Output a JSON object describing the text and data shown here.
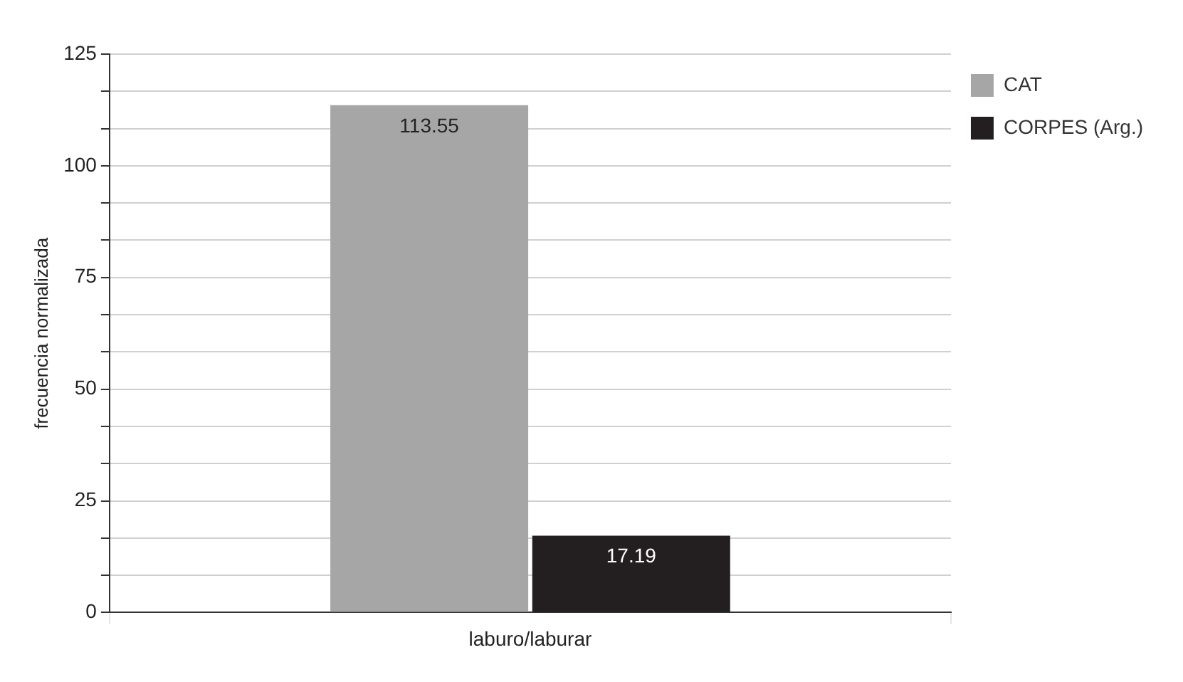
{
  "chart_data": {
    "type": "bar",
    "categories": [
      "laburo/laburar"
    ],
    "ylabel": "frecuencia normalizada",
    "series": [
      {
        "name": "CAT",
        "color": "#a6a6a6",
        "values": [
          113.55
        ]
      },
      {
        "name": "CORPES (Arg.)",
        "color": "#231f20",
        "values": [
          17.19
        ]
      }
    ],
    "ylim": [
      0,
      125
    ],
    "yticks": [
      0,
      {
        "value": 8.333,
        "label": null
      },
      {
        "value": 16.667,
        "label": null
      },
      25,
      {
        "value": 33.333,
        "label": null
      },
      {
        "value": 41.667,
        "label": null
      },
      50,
      {
        "value": 58.333,
        "label": null
      },
      {
        "value": 66.667,
        "label": null
      },
      75,
      {
        "value": 83.333,
        "label": null
      },
      {
        "value": 91.667,
        "label": null
      },
      100,
      {
        "value": 108.333,
        "label": null
      },
      {
        "value": 116.667,
        "label": null
      },
      125
    ],
    "grid": true,
    "legend": "top right",
    "data_labels": true
  }
}
